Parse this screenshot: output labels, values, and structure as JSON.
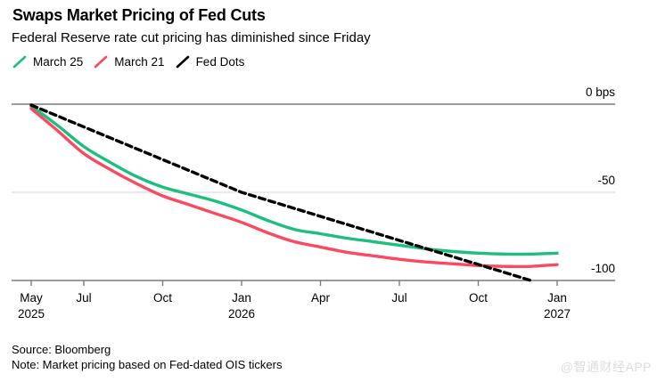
{
  "header": {
    "title": "Swaps Market Pricing of Fed Cuts",
    "subtitle": "Federal Reserve rate cut pricing has diminished since Friday"
  },
  "legend": [
    {
      "label": "March 25",
      "color": "#1dbf7d",
      "style": "solid"
    },
    {
      "label": "March 21",
      "color": "#fa4a61",
      "style": "solid"
    },
    {
      "label": "Fed Dots",
      "color": "#000000",
      "style": "dashed"
    }
  ],
  "chart_data": {
    "type": "line",
    "title": "Swaps Market Pricing of Fed Cuts",
    "subtitle": "Federal Reserve rate cut pricing has diminished since Friday",
    "ylabel": "bps",
    "ylim": [
      -100,
      0
    ],
    "grid": "horizontal",
    "legend_position": "top",
    "x_unit": "months from May 2025",
    "x_range": [
      0,
      20
    ],
    "x_ticks": [
      {
        "month": 0,
        "lines": [
          "May",
          "2025"
        ]
      },
      {
        "month": 2,
        "lines": [
          "Jul"
        ]
      },
      {
        "month": 5,
        "lines": [
          "Oct"
        ]
      },
      {
        "month": 8,
        "lines": [
          "Jan",
          "2026"
        ]
      },
      {
        "month": 11,
        "lines": [
          "Apr"
        ]
      },
      {
        "month": 14,
        "lines": [
          "Jul"
        ]
      },
      {
        "month": 17,
        "lines": [
          "Oct"
        ]
      },
      {
        "month": 20,
        "lines": [
          "Jan",
          "2027"
        ]
      }
    ],
    "y_ticks": [
      {
        "value": 0,
        "label": "0 bps"
      },
      {
        "value": -50,
        "label": "-50"
      },
      {
        "value": -100,
        "label": "-100"
      }
    ],
    "series": [
      {
        "name": "March 25",
        "color": "#1dbf7d",
        "style": "solid",
        "points": [
          [
            0,
            -1
          ],
          [
            1,
            -12
          ],
          [
            2,
            -24
          ],
          [
            3,
            -33
          ],
          [
            4,
            -41
          ],
          [
            5,
            -47
          ],
          [
            6,
            -51
          ],
          [
            7,
            -55
          ],
          [
            8,
            -60
          ],
          [
            9,
            -66
          ],
          [
            10,
            -71
          ],
          [
            11,
            -73.5
          ],
          [
            12,
            -76
          ],
          [
            13,
            -78
          ],
          [
            14,
            -80
          ],
          [
            15,
            -82
          ],
          [
            16,
            -83.5
          ],
          [
            17,
            -84.5
          ],
          [
            18,
            -85
          ],
          [
            19,
            -85
          ],
          [
            20,
            -84.5
          ]
        ]
      },
      {
        "name": "March 21",
        "color": "#fa4a61",
        "style": "solid",
        "points": [
          [
            0,
            -2.5
          ],
          [
            1,
            -15
          ],
          [
            2,
            -28
          ],
          [
            3,
            -37
          ],
          [
            4,
            -45
          ],
          [
            5,
            -52
          ],
          [
            6,
            -57
          ],
          [
            7,
            -62
          ],
          [
            8,
            -67
          ],
          [
            9,
            -73
          ],
          [
            10,
            -78
          ],
          [
            11,
            -81
          ],
          [
            12,
            -84
          ],
          [
            13,
            -86
          ],
          [
            14,
            -88
          ],
          [
            15,
            -89.5
          ],
          [
            16,
            -90.5
          ],
          [
            17,
            -91.5
          ],
          [
            18,
            -92
          ],
          [
            19,
            -92
          ],
          [
            20,
            -91
          ]
        ]
      },
      {
        "name": "Fed Dots",
        "color": "#000000",
        "style": "dashed",
        "points": [
          [
            0,
            -0.5
          ],
          [
            8,
            -50
          ],
          [
            19,
            -100
          ]
        ]
      }
    ],
    "layout_colors": {
      "axis_line": "#7a7a7a",
      "minor_grid": "#dcdcdc",
      "tick_label": "#000000"
    }
  },
  "footer": {
    "source": "Source: Bloomberg",
    "note": "Note: Market pricing based on Fed-dated OIS tickers"
  },
  "watermark": "@智通财经APP"
}
